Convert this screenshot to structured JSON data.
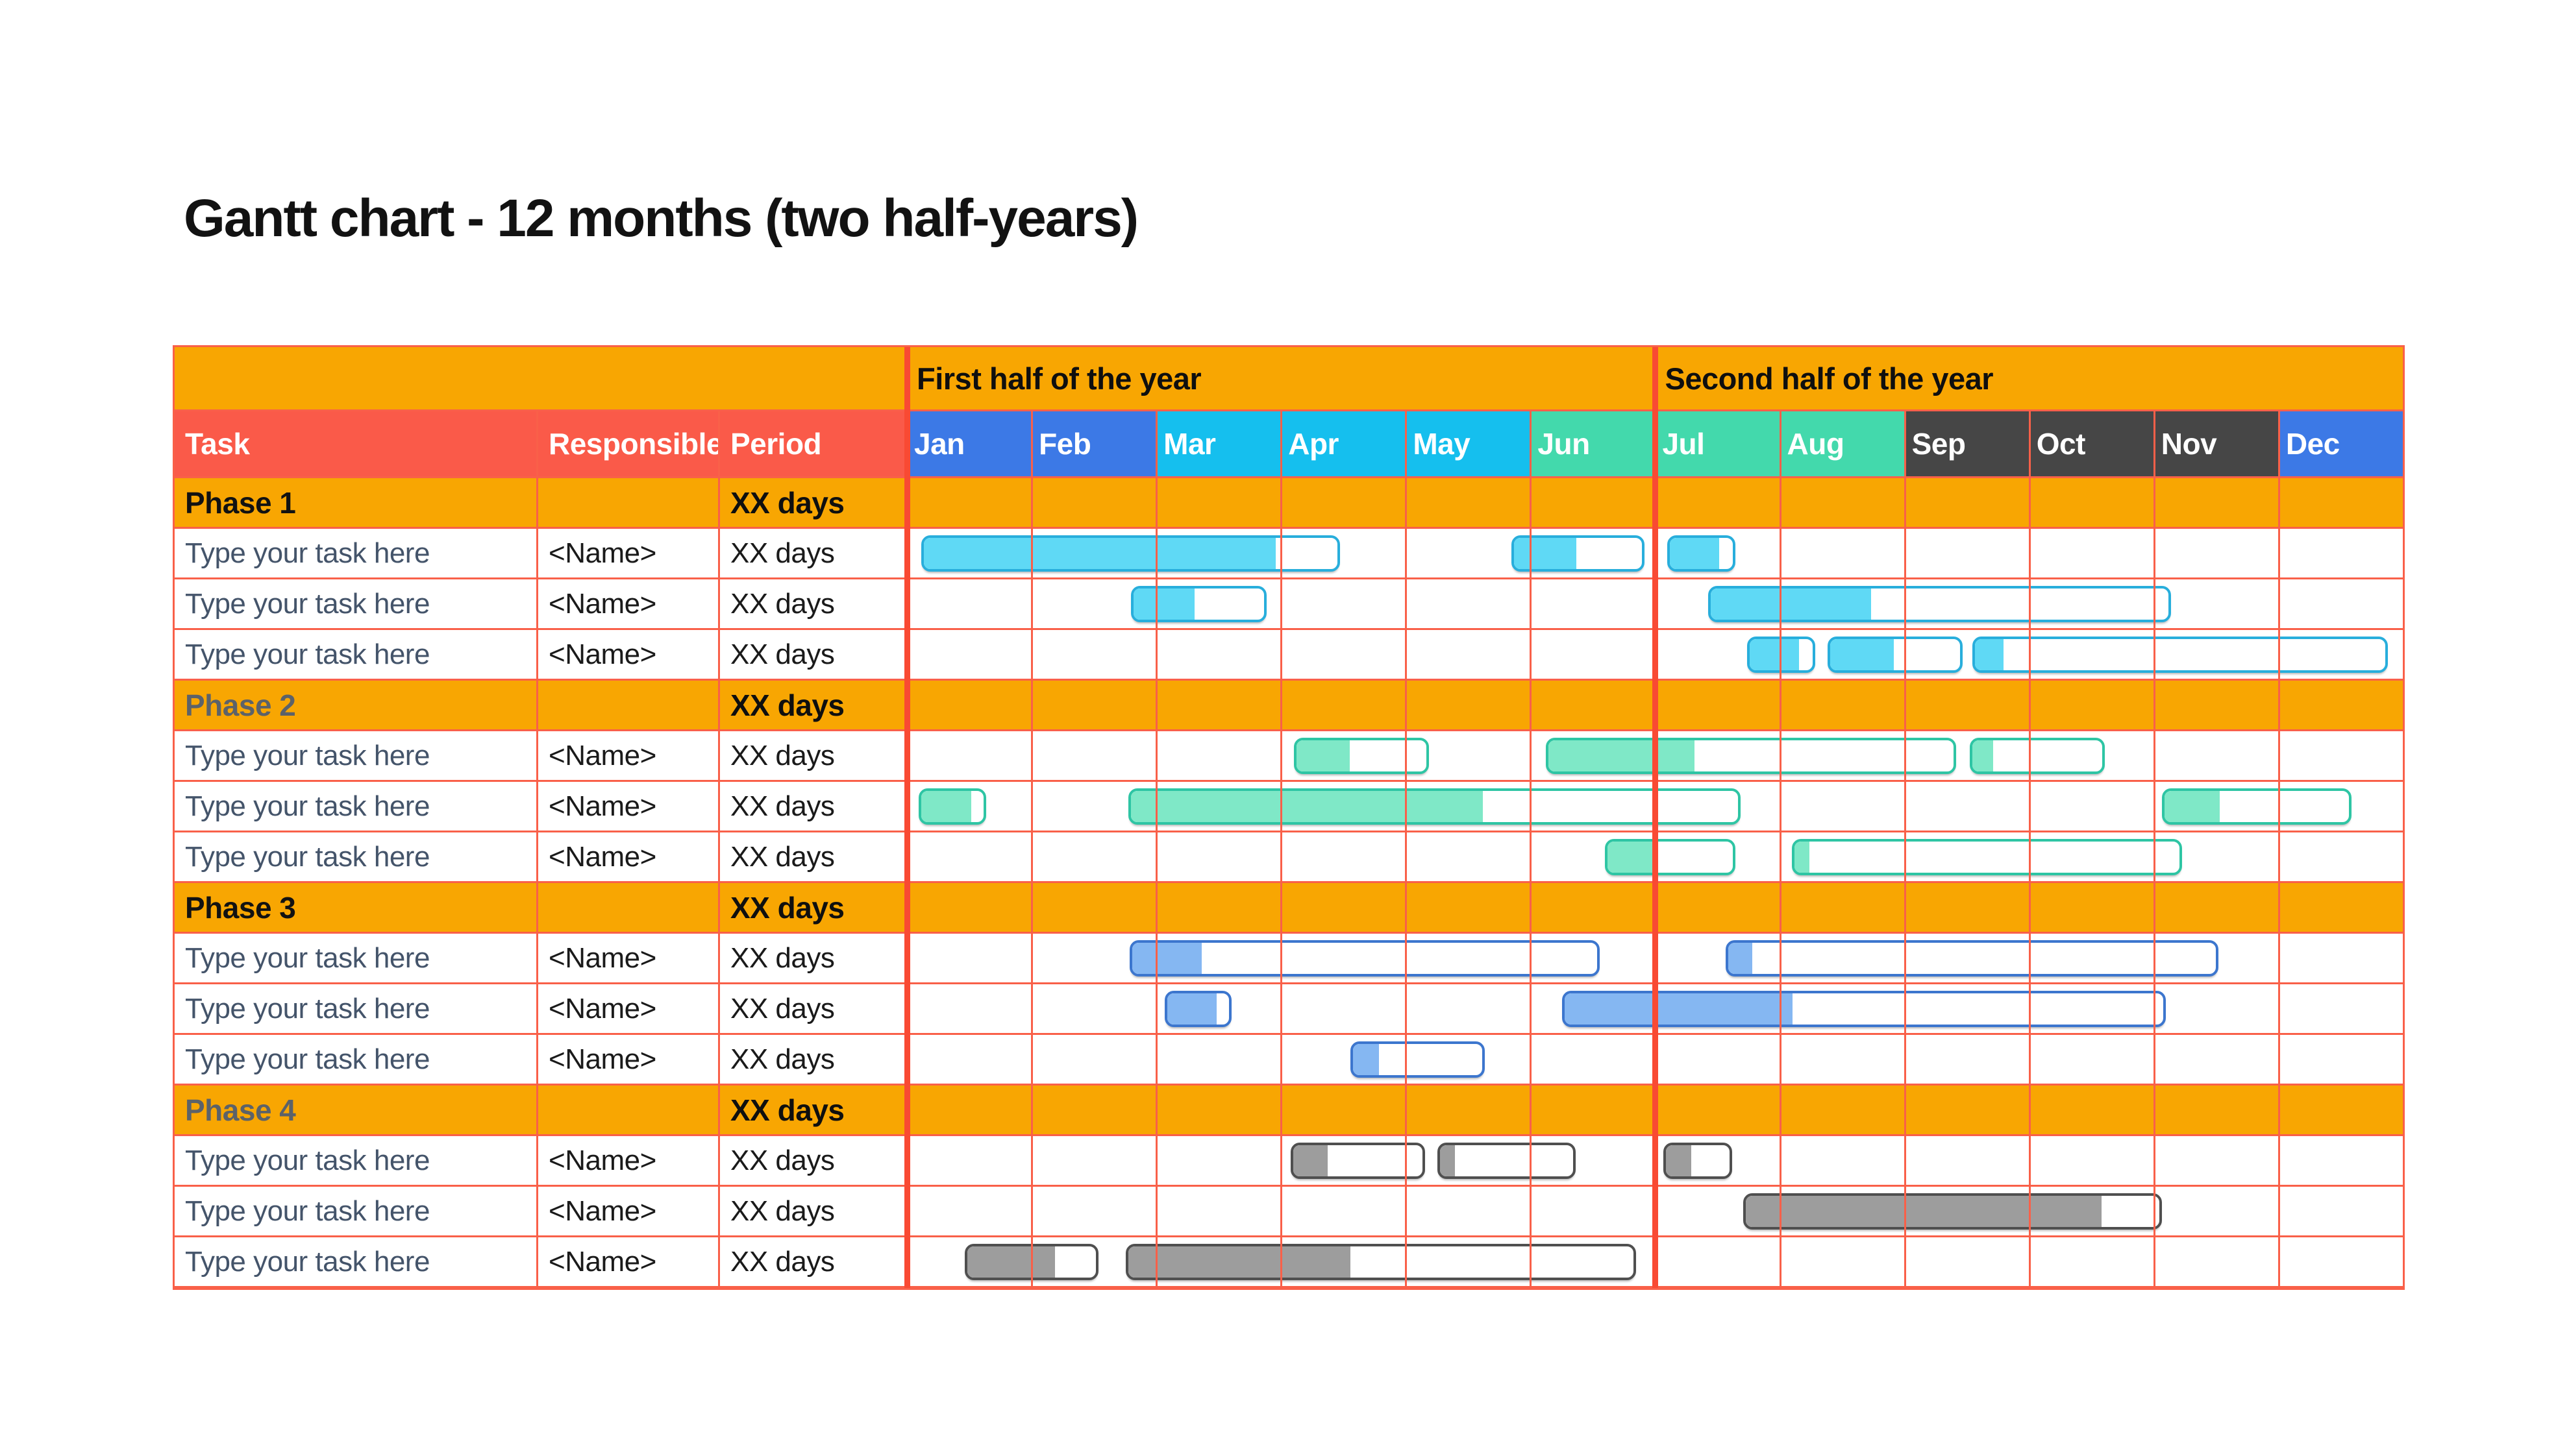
{
  "title": {
    "main": "Gantt chart - 12 months",
    "suffix": " (two half-years)"
  },
  "chart_data": {
    "type": "gantt",
    "title": "Gantt chart - 12 months (two half-years)",
    "x_axis": {
      "unit": "month",
      "range": [
        0,
        12
      ],
      "labels": [
        "Jan",
        "Feb",
        "Mar",
        "Apr",
        "May",
        "Jun",
        "Jul",
        "Aug",
        "Sep",
        "Oct",
        "Nov",
        "Dec"
      ]
    },
    "half_year_headers": [
      "First half of the year",
      "Second half of the year"
    ],
    "columns": {
      "task": "Task",
      "responsible": "Responsible",
      "period": "Period"
    },
    "months": [
      "Jan",
      "Feb",
      "Mar",
      "Apr",
      "May",
      "Jun",
      "Jul",
      "Aug",
      "Sep",
      "Oct",
      "Nov",
      "Dec"
    ],
    "phases": [
      {
        "label": "Phase 1",
        "label_color": "#121212",
        "period": "XX days",
        "bar_style": {
          "fill": "#5FD9F5",
          "border": "#28AEDC"
        },
        "tasks": [
          {
            "task": "Type your task here",
            "responsible": "<Name>",
            "period": "XX days",
            "bars": [
              {
                "start_month": 0.12,
                "end_month": 3.48,
                "progress": 0.85
              },
              {
                "start_month": 4.85,
                "end_month": 5.92,
                "progress": 0.49
              },
              {
                "start_month": 6.1,
                "end_month": 6.65,
                "progress": 0.78
              }
            ]
          },
          {
            "task": "Type your task here",
            "responsible": "<Name>",
            "period": "XX days",
            "bars": [
              {
                "start_month": 1.8,
                "end_month": 2.89,
                "progress": 0.47
              },
              {
                "start_month": 6.43,
                "end_month": 10.14,
                "progress": 0.35
              }
            ]
          },
          {
            "task": "Type your task here",
            "responsible": "<Name>",
            "period": "XX days",
            "bars": [
              {
                "start_month": 6.74,
                "end_month": 7.29,
                "progress": 0.78
              },
              {
                "start_month": 7.39,
                "end_month": 8.47,
                "progress": 0.49
              },
              {
                "start_month": 8.55,
                "end_month": 11.88,
                "progress": 0.07
              }
            ]
          }
        ]
      },
      {
        "label": "Phase 2",
        "label_color": "#5C6269",
        "period": "XX days",
        "bar_style": {
          "fill": "#7FE8C7",
          "border": "#2EC5A4"
        },
        "tasks": [
          {
            "task": "Type your task here",
            "responsible": "<Name>",
            "period": "XX days",
            "bars": [
              {
                "start_month": 3.11,
                "end_month": 4.19,
                "progress": 0.41
              },
              {
                "start_month": 5.13,
                "end_month": 8.42,
                "progress": 0.36
              },
              {
                "start_month": 8.53,
                "end_month": 9.61,
                "progress": 0.16
              }
            ]
          },
          {
            "task": "Type your task here",
            "responsible": "<Name>",
            "period": "XX days",
            "bars": [
              {
                "start_month": 0.1,
                "end_month": 0.64,
                "progress": 0.8
              },
              {
                "start_month": 1.78,
                "end_month": 6.69,
                "progress": 0.58
              },
              {
                "start_month": 10.07,
                "end_month": 11.59,
                "progress": 0.3
              }
            ]
          },
          {
            "task": "Type your task here",
            "responsible": "<Name>",
            "period": "XX days",
            "bars": [
              {
                "start_month": 5.6,
                "end_month": 6.65,
                "progress": 0.39
              },
              {
                "start_month": 7.1,
                "end_month": 10.23,
                "progress": 0.04
              }
            ]
          }
        ]
      },
      {
        "label": "Phase 3",
        "label_color": "#121212",
        "period": "XX days",
        "bar_style": {
          "fill": "#85B7F2",
          "border": "#3C76CE"
        },
        "tasks": [
          {
            "task": "Type your task here",
            "responsible": "<Name>",
            "period": "XX days",
            "bars": [
              {
                "start_month": 1.79,
                "end_month": 5.56,
                "progress": 0.15
              },
              {
                "start_month": 6.57,
                "end_month": 10.52,
                "progress": 0.05
              }
            ]
          },
          {
            "task": "Type your task here",
            "responsible": "<Name>",
            "period": "XX days",
            "bars": [
              {
                "start_month": 2.07,
                "end_month": 2.61,
                "progress": 0.8
              },
              {
                "start_month": 5.26,
                "end_month": 10.1,
                "progress": 0.38
              }
            ]
          },
          {
            "task": "Type your task here",
            "responsible": "<Name>",
            "period": "XX days",
            "bars": [
              {
                "start_month": 3.56,
                "end_month": 4.64,
                "progress": 0.2
              }
            ]
          }
        ]
      },
      {
        "label": "Phase 4",
        "label_color": "#5C6269",
        "period": "XX days",
        "bar_style": {
          "fill": "#9D9D9D",
          "border": "#4F4F4F"
        },
        "tasks": [
          {
            "task": "Type your task here",
            "responsible": "<Name>",
            "period": "XX days",
            "bars": [
              {
                "start_month": 3.08,
                "end_month": 4.16,
                "progress": 0.27
              },
              {
                "start_month": 4.26,
                "end_month": 5.37,
                "progress": 0.11
              },
              {
                "start_month": 6.07,
                "end_month": 6.62,
                "progress": 0.4
              }
            ]
          },
          {
            "task": "Type your task here",
            "responsible": "<Name>",
            "period": "XX days",
            "bars": [
              {
                "start_month": 6.71,
                "end_month": 10.07,
                "progress": 0.86
              }
            ]
          },
          {
            "task": "Type your task here",
            "responsible": "<Name>",
            "period": "XX days",
            "bars": [
              {
                "start_month": 0.47,
                "end_month": 1.54,
                "progress": 0.68
              },
              {
                "start_month": 1.76,
                "end_month": 5.85,
                "progress": 0.44
              }
            ]
          }
        ]
      }
    ]
  },
  "style": {
    "orange": "#F8A602",
    "header_red": "#FA5A49",
    "grid_line": "#F96049",
    "grid_line_strong": "#F94A33",
    "task_text": "#44546A",
    "month_colors": [
      "#3C79E6",
      "#3C79E6",
      "#15BFEE",
      "#15BFEE",
      "#15BFEE",
      "#43D9AC",
      "#43D9AC",
      "#43D9AC",
      "#464646",
      "#464646",
      "#464646",
      "#3C79E6"
    ]
  }
}
